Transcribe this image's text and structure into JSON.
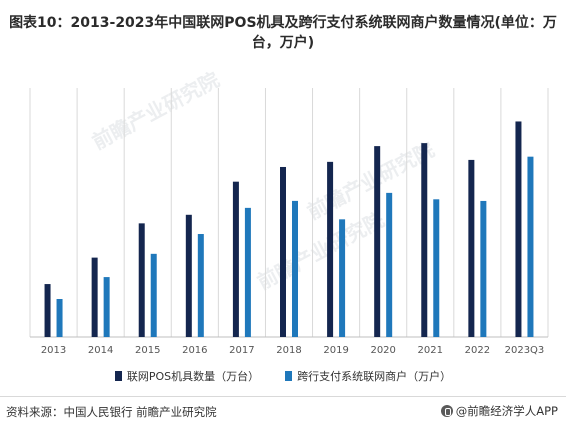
{
  "title": "图表10：2013-2023年中国联网POS机具及跨行支付系统联网商户数量情况(单位：万台，万户)",
  "footer": {
    "source": "资料来源：中国人民银行 前瞻产业研究院",
    "brand": "@前瞻经济学人APP"
  },
  "watermark": {
    "text": "前瞻产业研究院"
  },
  "colors": {
    "series1": "#14264f",
    "series2": "#1f78bb",
    "gridline": "#d9d9d9",
    "axis": "#bfbfbf",
    "tick_label": "#555555"
  },
  "chart_data": {
    "type": "bar",
    "title": "图表10：2013-2023年中国联网POS机具及跨行支付系统联网商户数量情况(单位：万台，万户)",
    "categories": [
      "2013",
      "2014",
      "2015",
      "2016",
      "2017",
      "2018",
      "2019",
      "2020",
      "2021",
      "2022",
      "2023Q3"
    ],
    "series": [
      {
        "name": "联网POS机具数量（万台）",
        "values": [
          1063,
          1594,
          2282,
          2454,
          3119,
          3414,
          3517,
          3833,
          3893,
          3556,
          4328
        ]
      },
      {
        "name": "跨行支付系统联网商户（万户）",
        "values": [
          763,
          1203,
          1670,
          2068,
          2593,
          2733,
          2363,
          2894,
          2765,
          2732,
          3621
        ]
      }
    ],
    "ylim": [
      0,
      5000
    ],
    "grid": "vertical",
    "legend_position": "bottom",
    "xlabel": "",
    "ylabel": ""
  }
}
